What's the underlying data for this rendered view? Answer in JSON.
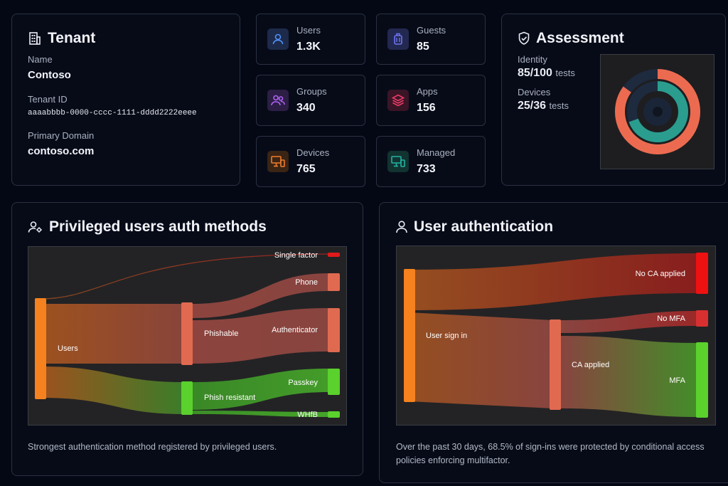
{
  "tenant": {
    "title": "Tenant",
    "name_label": "Name",
    "name_value": "Contoso",
    "id_label": "Tenant ID",
    "id_value": "aaaabbbb-0000-cccc-1111-dddd2222eeee",
    "domain_label": "Primary Domain",
    "domain_value": "contoso.com"
  },
  "stats": {
    "users": {
      "label": "Users",
      "value": "1.3K",
      "color": "#3b82f6"
    },
    "guests": {
      "label": "Guests",
      "value": "85",
      "color": "#6366f1"
    },
    "groups": {
      "label": "Groups",
      "value": "340",
      "color": "#a855f7"
    },
    "apps": {
      "label": "Apps",
      "value": "156",
      "color": "#e11d48"
    },
    "devices": {
      "label": "Devices",
      "value": "765",
      "color": "#f97316"
    },
    "managed": {
      "label": "Managed",
      "value": "733",
      "color": "#14b8a6"
    }
  },
  "assessment": {
    "title": "Assessment",
    "identity_label": "Identity",
    "identity_value": "85/100",
    "identity_unit": "tests",
    "devices_label": "Devices",
    "devices_value": "25/36",
    "devices_unit": "tests",
    "identity_fraction": 0.85,
    "devices_fraction": 0.694,
    "identity_color": "#ec6b50",
    "devices_color": "#2a9d8f"
  },
  "privileged": {
    "title": "Privileged users auth methods",
    "footer": "Strongest authentication method registered by privileged users.",
    "nodes": {
      "users": "Users",
      "phishable": "Phishable",
      "phish_resistant": "Phish resistant",
      "single_factor": "Single factor",
      "phone": "Phone",
      "authenticator": "Authenticator",
      "passkey": "Passkey",
      "whfb": "WHfB"
    }
  },
  "user_auth": {
    "title": "User authentication",
    "footer": "Over the past 30 days, 68.5% of sign-ins were protected by conditional access policies enforcing multifactor.",
    "nodes": {
      "sign_in": "User sign in",
      "no_ca": "No CA applied",
      "ca_applied": "CA applied",
      "no_mfa": "No MFA",
      "mfa": "MFA"
    }
  }
}
